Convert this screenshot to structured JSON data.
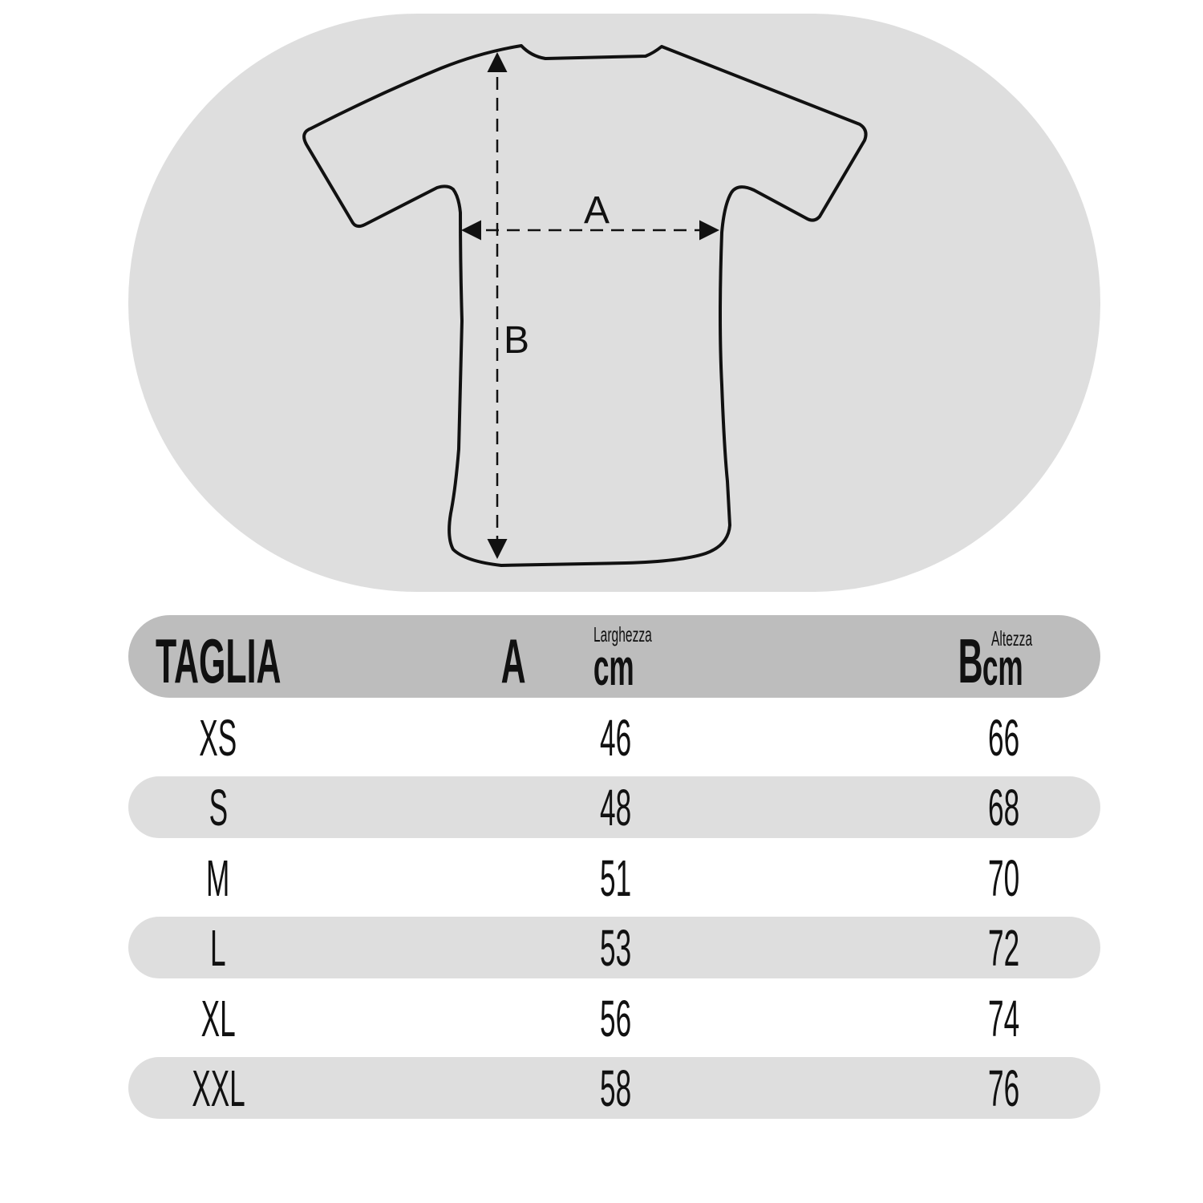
{
  "diagram": {
    "label_a": "A",
    "label_b": "B"
  },
  "table": {
    "headers": {
      "size": "TAGLIA",
      "a_letter": "A",
      "a_sub": "Larghezza",
      "a_unit": "cm",
      "b_letter": "B",
      "b_sub": "Altezza",
      "b_unit": "cm"
    },
    "rows": [
      {
        "size": "XS",
        "a": "46",
        "b": "66"
      },
      {
        "size": "S",
        "a": "48",
        "b": "68"
      },
      {
        "size": "M",
        "a": "51",
        "b": "70"
      },
      {
        "size": "L",
        "a": "53",
        "b": "72"
      },
      {
        "size": "XL",
        "a": "56",
        "b": "74"
      },
      {
        "size": "XXL",
        "a": "58",
        "b": "76"
      }
    ]
  },
  "colors": {
    "oval": "#dedede",
    "header": "#bdbdbd",
    "band": "#dedede"
  }
}
